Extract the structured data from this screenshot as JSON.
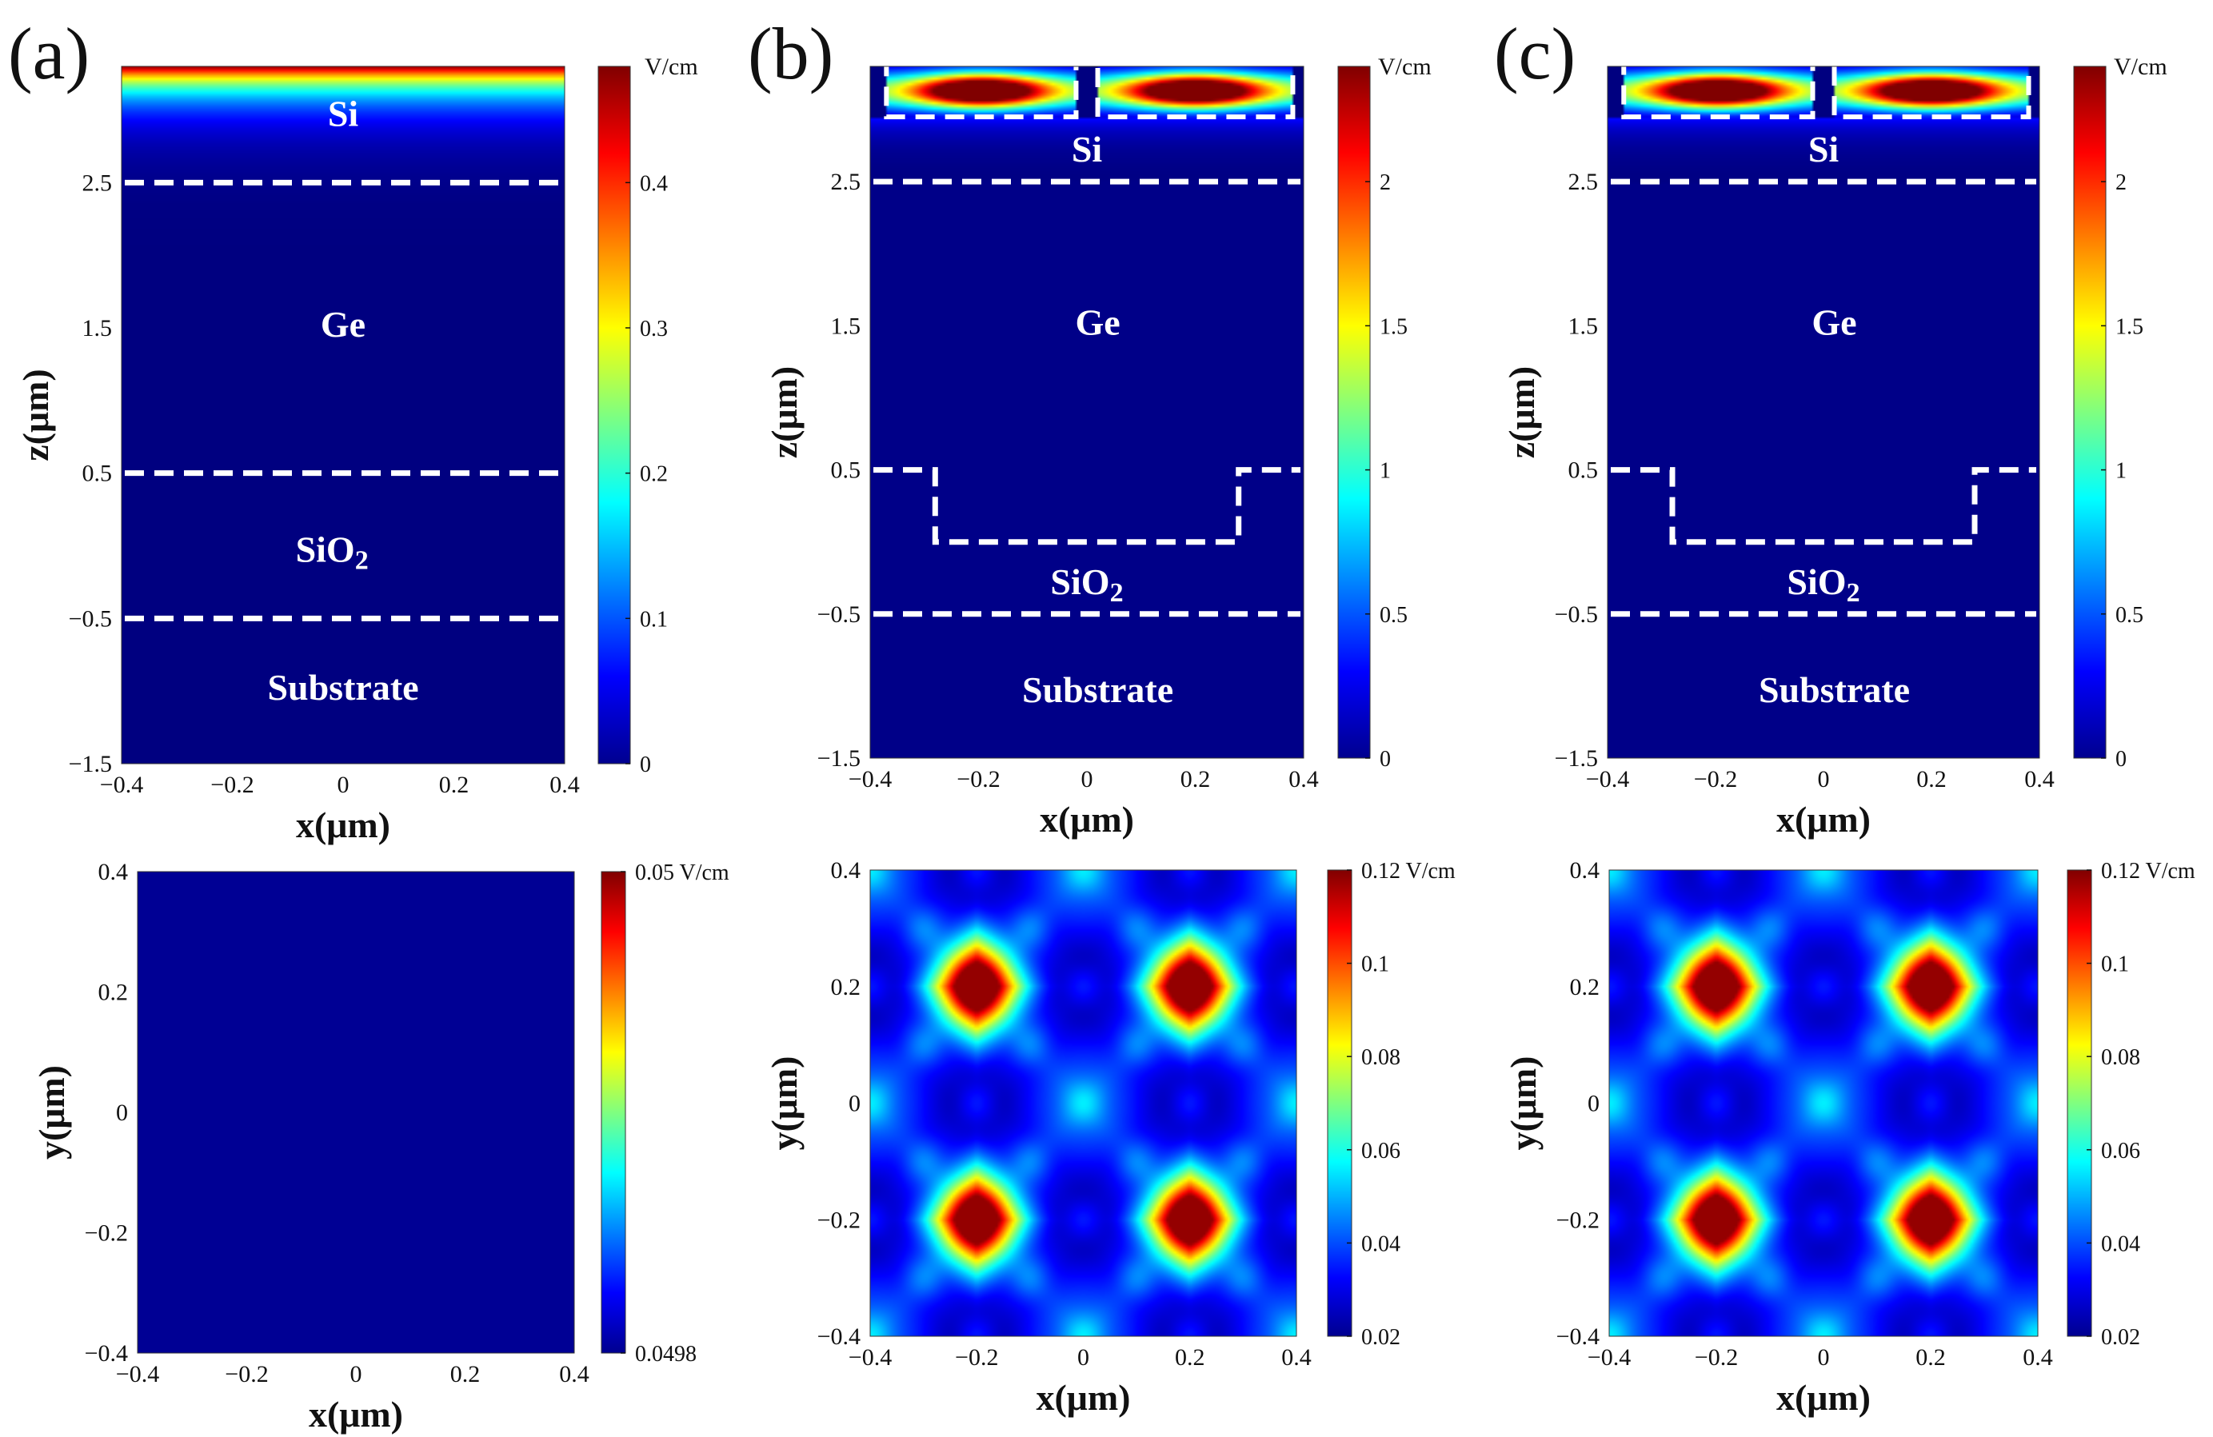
{
  "figure": {
    "panel_labels": [
      "(a)",
      "(b)",
      "(c)"
    ]
  },
  "chart_data": [
    {
      "id": "a-top",
      "type": "heatmap",
      "panel": "(a)",
      "xlabel": "x(μm)",
      "ylabel": "z(μm)",
      "xlim": [
        -0.4,
        0.4
      ],
      "ylim": [
        -1.5,
        3.3
      ],
      "xticks": [
        -0.4,
        -0.2,
        0,
        0.2,
        0.4
      ],
      "xtick_labels": [
        "−0.4",
        "−0.2",
        "0",
        "0.2",
        "0.4"
      ],
      "yticks": [
        -1.5,
        -0.5,
        0.5,
        1.5,
        2.5
      ],
      "ytick_labels": [
        "−1.5",
        "−0.5",
        "0.5",
        "1.5",
        "2.5"
      ],
      "colorbar": {
        "unit": "V/cm",
        "min": 0,
        "max": 0.48,
        "ticks": [
          0,
          0.1,
          0.2,
          0.3,
          0.4
        ],
        "tick_labels": [
          "0",
          "0.1",
          "0.2",
          "0.3",
          "0.4"
        ]
      },
      "regions": [
        {
          "label": "Si",
          "sub": "",
          "x": 0.0,
          "z": 2.95
        },
        {
          "label": "Ge",
          "sub": "",
          "x": 0.0,
          "z": 1.5
        },
        {
          "label": "SiO",
          "sub": "2",
          "x": -0.02,
          "z": -0.05
        },
        {
          "label": "Substrate",
          "sub": "",
          "x": 0.0,
          "z": -1.0
        }
      ],
      "interfaces_z": [
        2.5,
        0.5,
        -0.5
      ],
      "field": {
        "kind": "surface_decay",
        "z_top": 3.3,
        "max": 0.48
      }
    },
    {
      "id": "b-top",
      "type": "heatmap",
      "panel": "(b)",
      "xlabel": "x(μm)",
      "ylabel": "z(μm)",
      "xlim": [
        -0.4,
        0.4
      ],
      "ylim": [
        -1.5,
        3.3
      ],
      "xticks": [
        -0.4,
        -0.2,
        0,
        0.2,
        0.4
      ],
      "xtick_labels": [
        "−0.4",
        "−0.2",
        "0",
        "0.2",
        "0.4"
      ],
      "yticks": [
        -1.5,
        -0.5,
        0.5,
        1.5,
        2.5
      ],
      "ytick_labels": [
        "−1.5",
        "−0.5",
        "0.5",
        "1.5",
        "2.5"
      ],
      "colorbar": {
        "unit": "V/cm",
        "min": 0,
        "max": 2.4,
        "ticks": [
          0,
          0.5,
          1,
          1.5,
          2
        ],
        "tick_labels": [
          "0",
          "0.5",
          "1",
          "1.5",
          "2"
        ]
      },
      "regions": [
        {
          "label": "Si",
          "sub": "",
          "x": 0.0,
          "z": 2.7
        },
        {
          "label": "Ge",
          "sub": "",
          "x": 0.02,
          "z": 1.5
        },
        {
          "label": "SiO",
          "sub": "2",
          "x": 0.0,
          "z": -0.3
        },
        {
          "label": "Substrate",
          "sub": "",
          "x": 0.02,
          "z": -1.05
        }
      ],
      "interfaces_z": [
        2.5,
        -0.5
      ],
      "trench": {
        "x_left": -0.28,
        "x_right": 0.28,
        "z_top": 0.5,
        "z_bottom": 0.0
      },
      "gratings": [
        {
          "x0": -0.37,
          "x1": -0.02,
          "z0": 2.95,
          "z1": 3.3
        },
        {
          "x0": 0.02,
          "x1": 0.38,
          "z0": 2.95,
          "z1": 3.3
        }
      ],
      "field": {
        "kind": "grating_modes",
        "peak": 2.3,
        "centers": [
          -0.19,
          0.2
        ],
        "z_center": 3.13
      }
    },
    {
      "id": "c-top",
      "type": "heatmap",
      "panel": "(c)",
      "xlabel": "x(μm)",
      "ylabel": "z(μm)",
      "xlim": [
        -0.4,
        0.4
      ],
      "ylim": [
        -1.5,
        3.3
      ],
      "xticks": [
        -0.4,
        -0.2,
        0,
        0.2,
        0.4
      ],
      "xtick_labels": [
        "−0.4",
        "−0.2",
        "0",
        "0.2",
        "0.4"
      ],
      "yticks": [
        -1.5,
        -0.5,
        0.5,
        1.5,
        2.5
      ],
      "ytick_labels": [
        "−1.5",
        "−0.5",
        "0.5",
        "1.5",
        "2.5"
      ],
      "colorbar": {
        "unit": "V/cm",
        "min": 0,
        "max": 2.4,
        "ticks": [
          0,
          0.5,
          1,
          1.5,
          2
        ],
        "tick_labels": [
          "0",
          "0.5",
          "1",
          "1.5",
          "2"
        ]
      },
      "regions": [
        {
          "label": "Si",
          "sub": "",
          "x": 0.0,
          "z": 2.7
        },
        {
          "label": "Ge",
          "sub": "",
          "x": 0.02,
          "z": 1.5
        },
        {
          "label": "SiO",
          "sub": "2",
          "x": 0.0,
          "z": -0.3
        },
        {
          "label": "Substrate",
          "sub": "",
          "x": 0.02,
          "z": -1.05
        }
      ],
      "interfaces_z": [
        2.5,
        -0.5
      ],
      "trench": {
        "x_left": -0.28,
        "x_right": 0.28,
        "z_top": 0.5,
        "z_bottom": 0.0
      },
      "gratings": [
        {
          "x0": -0.37,
          "x1": -0.02,
          "z0": 2.95,
          "z1": 3.3
        },
        {
          "x0": 0.02,
          "x1": 0.38,
          "z0": 2.95,
          "z1": 3.3
        }
      ],
      "field": {
        "kind": "grating_modes",
        "peak": 2.3,
        "centers": [
          -0.19,
          0.2
        ],
        "z_center": 3.13
      }
    },
    {
      "id": "a-bottom",
      "type": "heatmap",
      "panel": "(a)",
      "xlabel": "x(μm)",
      "ylabel": "y(μm)",
      "xlim": [
        -0.4,
        0.4
      ],
      "ylim": [
        -0.4,
        0.4
      ],
      "xticks": [
        -0.4,
        -0.2,
        0,
        0.2,
        0.4
      ],
      "xtick_labels": [
        "−0.4",
        "−0.2",
        "0",
        "0.2",
        "0.4"
      ],
      "yticks": [
        -0.4,
        -0.2,
        0,
        0.2,
        0.4
      ],
      "ytick_labels": [
        "−0.4",
        "−0.2",
        "0",
        "0.2",
        "0.4"
      ],
      "colorbar": {
        "unit": "V/cm",
        "min": 0.0498,
        "max": 0.05,
        "ticks": [
          0.0498,
          0.05
        ],
        "tick_labels": [
          "0.0498",
          "0.05 V/cm"
        ]
      },
      "field": {
        "kind": "uniform",
        "value": 0.0498
      }
    },
    {
      "id": "b-bottom",
      "type": "heatmap",
      "panel": "(b)",
      "xlabel": "x(μm)",
      "ylabel": "y(μm)",
      "xlim": [
        -0.4,
        0.4
      ],
      "ylim": [
        -0.4,
        0.4
      ],
      "xticks": [
        -0.4,
        -0.2,
        0,
        0.2,
        0.4
      ],
      "xtick_labels": [
        "−0.4",
        "−0.2",
        "0",
        "0.2",
        "0.4"
      ],
      "yticks": [
        -0.4,
        -0.2,
        0,
        0.2,
        0.4
      ],
      "ytick_labels": [
        "−0.4",
        "−0.2",
        "0",
        "0.2",
        "0.4"
      ],
      "colorbar": {
        "unit": "V/cm",
        "min": 0.02,
        "max": 0.12,
        "ticks": [
          0.02,
          0.04,
          0.06,
          0.08,
          0.1,
          0.12
        ],
        "tick_labels": [
          "0.02",
          "0.04",
          "0.06",
          "0.08",
          "0.1",
          "0.12 V/cm"
        ]
      },
      "field": {
        "kind": "hotspot_lattice",
        "peak": 0.118,
        "base": 0.022,
        "hotspots": [
          [
            -0.2,
            0.2
          ],
          [
            0.2,
            0.2
          ],
          [
            -0.2,
            -0.2
          ],
          [
            0.2,
            -0.2
          ]
        ]
      }
    },
    {
      "id": "c-bottom",
      "type": "heatmap",
      "panel": "(c)",
      "xlabel": "x(μm)",
      "ylabel": "y(μm)",
      "xlim": [
        -0.4,
        0.4
      ],
      "ylim": [
        -0.4,
        0.4
      ],
      "xticks": [
        -0.4,
        -0.2,
        0,
        0.2,
        0.4
      ],
      "xtick_labels": [
        "−0.4",
        "−0.2",
        "0",
        "0.2",
        "0.4"
      ],
      "yticks": [
        -0.4,
        -0.2,
        0,
        0.2,
        0.4
      ],
      "ytick_labels": [
        "−0.4",
        "−0.2",
        "0",
        "0.2",
        "0.4"
      ],
      "colorbar": {
        "unit": "V/cm",
        "min": 0.02,
        "max": 0.12,
        "ticks": [
          0.02,
          0.04,
          0.06,
          0.08,
          0.1,
          0.12
        ],
        "tick_labels": [
          "0.02",
          "0.04",
          "0.06",
          "0.08",
          "0.1",
          "0.12 V/cm"
        ]
      },
      "field": {
        "kind": "hotspot_lattice",
        "peak": 0.118,
        "base": 0.022,
        "hotspots": [
          [
            -0.2,
            0.2
          ],
          [
            0.2,
            0.2
          ],
          [
            -0.2,
            -0.2
          ],
          [
            0.2,
            -0.2
          ]
        ]
      }
    }
  ]
}
